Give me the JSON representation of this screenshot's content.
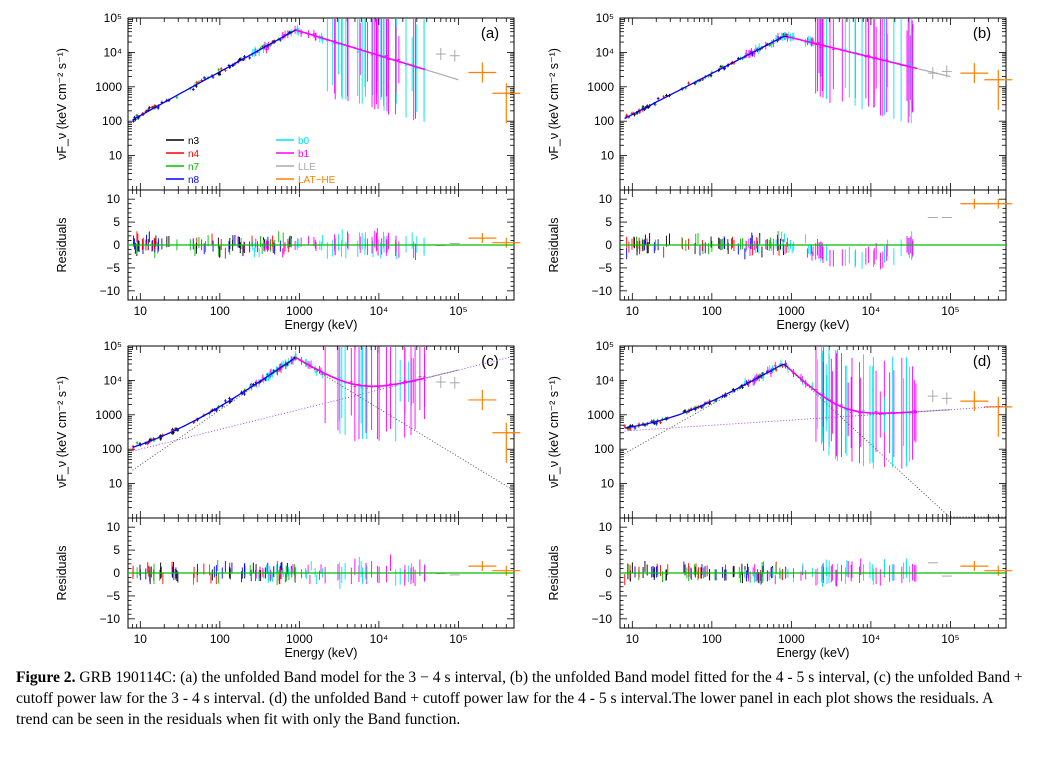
{
  "chart_data": [
    {
      "type": "scatter",
      "panel_label": "(a)",
      "xlabel": "Energy (keV)",
      "ylabel_top": "νF_ν (keV cm⁻² s⁻¹)",
      "ylabel_bottom": "Residuals",
      "xscale": "log",
      "yscale_top": "log",
      "xlim": [
        7,
        500000
      ],
      "ylim_top": [
        1,
        100000
      ],
      "ylim_bottom": [
        -12,
        12
      ],
      "x_ticks": [
        "10",
        "100",
        "1000",
        "10⁴",
        "10⁵"
      ],
      "y_ticks_top": [
        "10⁵",
        "10⁴",
        "1000",
        "100",
        "10"
      ],
      "y_ticks_bottom": [
        "10",
        "5",
        "0",
        "−5",
        "−10"
      ],
      "model": "Band",
      "band": {
        "e_low": 8,
        "f_low": 110,
        "e_peak": 900,
        "f_peak": 45000,
        "e_high": 400000,
        "f_high": 600
      },
      "residuals": "flat",
      "lat_points": [
        {
          "x": 200000,
          "y": 2600
        },
        {
          "x": 400000,
          "y": 650
        }
      ],
      "lle_points": [
        {
          "x": 60000,
          "y": 9000
        },
        {
          "x": 90000,
          "y": 8000
        }
      ],
      "legend": [
        {
          "label": "n3",
          "color": "#000000"
        },
        {
          "label": "n4",
          "color": "#ff0000"
        },
        {
          "label": "n7",
          "color": "#00c000"
        },
        {
          "label": "n8",
          "color": "#0000ff"
        },
        {
          "label": "b0",
          "color": "#00e5ee"
        },
        {
          "label": "b1",
          "color": "#ff00ff"
        },
        {
          "label": "LLE",
          "color": "#aaaaaa"
        },
        {
          "label": "LAT−HE",
          "color": "#ff8000"
        }
      ]
    },
    {
      "type": "scatter",
      "panel_label": "(b)",
      "xlabel": "Energy (keV)",
      "ylabel_top": "νF_ν (keV cm⁻² s⁻¹)",
      "ylabel_bottom": "Residuals",
      "xscale": "log",
      "yscale_top": "log",
      "xlim": [
        7,
        500000
      ],
      "ylim_top": [
        1,
        100000
      ],
      "ylim_bottom": [
        -12,
        12
      ],
      "x_ticks": [
        "10",
        "100",
        "1000",
        "10⁴",
        "10⁵"
      ],
      "y_ticks_top": [
        "10⁵",
        "10⁴",
        "1000",
        "100",
        "10"
      ],
      "y_ticks_bottom": [
        "10",
        "5",
        "0",
        "−5",
        "−10"
      ],
      "model": "Band",
      "band": {
        "e_low": 8,
        "f_low": 120,
        "e_peak": 820,
        "f_peak": 30000,
        "e_high": 400000,
        "f_high": 900
      },
      "residuals": "trend",
      "lat_points": [
        {
          "x": 200000,
          "y": 2500
        },
        {
          "x": 400000,
          "y": 1600
        }
      ],
      "lle_points": [
        {
          "x": 60000,
          "y": 2500
        },
        {
          "x": 90000,
          "y": 2800
        }
      ]
    },
    {
      "type": "scatter",
      "panel_label": "(c)",
      "xlabel": "Energy (keV)",
      "ylabel_top": "νF_ν (keV cm⁻² s⁻¹)",
      "ylabel_bottom": "Residuals",
      "xscale": "log",
      "yscale_top": "log",
      "xlim": [
        7,
        500000
      ],
      "ylim_top": [
        1,
        100000
      ],
      "ylim_bottom": [
        -12,
        12
      ],
      "x_ticks": [
        "10",
        "100",
        "1000",
        "10⁴",
        "10⁵"
      ],
      "y_ticks_top": [
        "10⁵",
        "10⁴",
        "1000",
        "100",
        "10"
      ],
      "y_ticks_bottom": [
        "10",
        "5",
        "0",
        "−5",
        "−10"
      ],
      "model": "Band + cutoff power law",
      "band": {
        "e_low": 10,
        "f_low": 35,
        "e_peak": 900,
        "f_peak": 45000,
        "e_high": 100000,
        "f_high": 60
      },
      "cpl": {
        "e_low": 10,
        "f_low": 100,
        "e_high": 30000,
        "f_high": 10000
      },
      "residuals": "flat",
      "lat_points": [
        {
          "x": 200000,
          "y": 2700
        },
        {
          "x": 400000,
          "y": 300
        }
      ],
      "lle_points": [
        {
          "x": 60000,
          "y": 9000
        },
        {
          "x": 90000,
          "y": 8500
        }
      ]
    },
    {
      "type": "scatter",
      "panel_label": "(d)",
      "xlabel": "Energy (keV)",
      "ylabel_top": "νF_ν (keV cm⁻² s⁻¹)",
      "ylabel_bottom": "Residuals",
      "xscale": "log",
      "yscale_top": "log",
      "xlim": [
        7,
        500000
      ],
      "ylim_top": [
        1,
        100000
      ],
      "ylim_bottom": [
        -12,
        12
      ],
      "x_ticks": [
        "10",
        "100",
        "1000",
        "10⁴",
        "10⁵"
      ],
      "y_ticks_top": [
        "10⁵",
        "10⁴",
        "1000",
        "100",
        "10"
      ],
      "y_ticks_bottom": [
        "10",
        "5",
        "0",
        "−5",
        "−10"
      ],
      "model": "Band + cutoff power law",
      "band": {
        "e_low": 10,
        "f_low": 100,
        "e_peak": 800,
        "f_peak": 30000,
        "e_high": 60000,
        "f_high": 3
      },
      "cpl": {
        "e_low": 10,
        "f_low": 350,
        "e_high": 500000,
        "f_high": 1800
      },
      "residuals": "flat",
      "lat_points": [
        {
          "x": 200000,
          "y": 2500
        },
        {
          "x": 400000,
          "y": 1700
        }
      ],
      "lle_points": [
        {
          "x": 60000,
          "y": 3500
        },
        {
          "x": 90000,
          "y": 3000
        }
      ]
    }
  ],
  "caption": {
    "label": "Figure 2.",
    "text": "GRB 190114C: (a) the unfolded Band model for the 3 − 4 s interval, (b) the unfolded Band model fitted for the 4 - 5 s interval, (c) the unfolded Band + cutoff power law for the 3 - 4 s interval. (d) the unfolded Band + cutoff power law for the 4 - 5 s interval.The lower panel in each plot shows the residuals. A trend can be seen in the residuals when fit with only the Band function."
  }
}
